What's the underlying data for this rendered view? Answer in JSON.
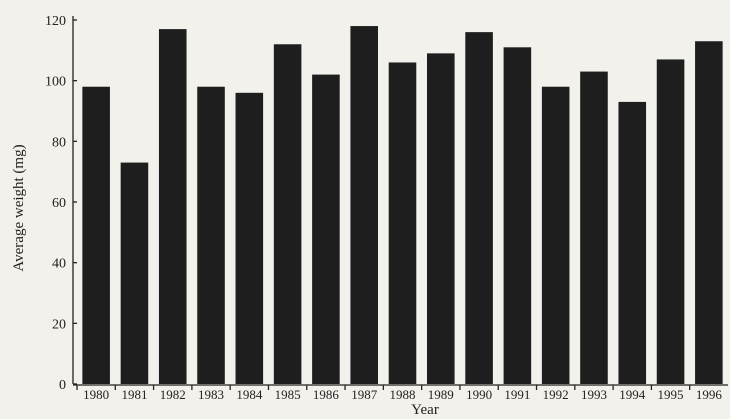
{
  "chart_data": {
    "type": "bar",
    "xlabel": "Year",
    "ylabel": "Average weight (mg)",
    "ylim": [
      0,
      120
    ],
    "yticks": [
      0,
      20,
      40,
      60,
      80,
      100,
      120
    ],
    "categories": [
      "1980",
      "1981",
      "1982",
      "1983",
      "1984",
      "1985",
      "1986",
      "1987",
      "1988",
      "1989",
      "1990",
      "1991",
      "1992",
      "1993",
      "1994",
      "1995",
      "1996"
    ],
    "values": [
      98,
      73,
      117,
      98,
      96,
      112,
      102,
      118,
      106,
      109,
      116,
      111,
      98,
      103,
      93,
      107,
      113
    ],
    "bar_color": "#1e1e1e",
    "grid": false
  }
}
